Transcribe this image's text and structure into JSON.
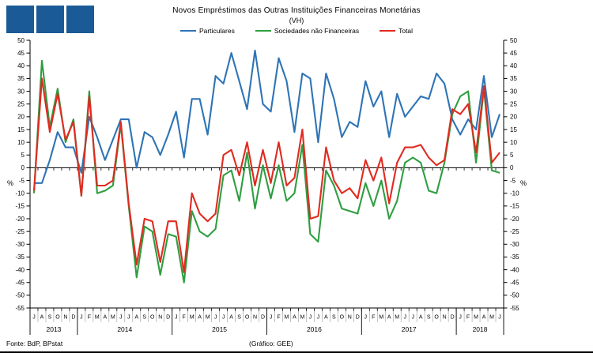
{
  "logo": {
    "square_count": 3,
    "color": "#1A5B97"
  },
  "header": {
    "title": "Novos Empréstimos das Outras Instituições Financeiras Monetárias",
    "subtitle": "(VH)"
  },
  "axis": {
    "unit_label_left": "%",
    "unit_label_right": "%",
    "y_ticks": [
      50,
      45,
      40,
      35,
      30,
      25,
      20,
      15,
      10,
      5,
      0,
      -5,
      -10,
      -15,
      -20,
      -25,
      -30,
      -35,
      -40,
      -45,
      -50,
      -55
    ],
    "month_letters": [
      "J",
      "A",
      "S",
      "O",
      "N",
      "D",
      "J",
      "F",
      "M",
      "A",
      "M",
      "J",
      "J",
      "A",
      "S",
      "O",
      "N",
      "D",
      "J",
      "F",
      "M",
      "A",
      "M",
      "J",
      "J",
      "A",
      "S",
      "O",
      "N",
      "D",
      "J",
      "F",
      "M",
      "A",
      "M",
      "J",
      "J",
      "A",
      "S",
      "O",
      "N",
      "D",
      "J",
      "F",
      "M",
      "A",
      "M",
      "J",
      "J",
      "A",
      "S",
      "O",
      "N",
      "D",
      "J",
      "F",
      "M",
      "A",
      "M",
      "J"
    ],
    "years": [
      {
        "label": "2013",
        "months": 6
      },
      {
        "label": "2014",
        "months": 12
      },
      {
        "label": "2015",
        "months": 12
      },
      {
        "label": "2016",
        "months": 12
      },
      {
        "label": "2017",
        "months": 12
      },
      {
        "label": "2018",
        "months": 6
      }
    ]
  },
  "footer": {
    "source": "Fonte: BdP, BPstat",
    "credit": "(Gráfico: GEE)"
  },
  "chart_data": {
    "type": "line",
    "title": "Novos Empréstimos das Outras Instituições Financeiras Monetárias (VH)",
    "ylabel": "%",
    "ylim": [
      -55,
      50
    ],
    "y_step": 5,
    "grid": false,
    "legend_position": "top",
    "categories": [
      "2013-07",
      "2013-08",
      "2013-09",
      "2013-10",
      "2013-11",
      "2013-12",
      "2014-01",
      "2014-02",
      "2014-03",
      "2014-04",
      "2014-05",
      "2014-06",
      "2014-07",
      "2014-08",
      "2014-09",
      "2014-10",
      "2014-11",
      "2014-12",
      "2015-01",
      "2015-02",
      "2015-03",
      "2015-04",
      "2015-05",
      "2015-06",
      "2015-07",
      "2015-08",
      "2015-09",
      "2015-10",
      "2015-11",
      "2015-12",
      "2016-01",
      "2016-02",
      "2016-03",
      "2016-04",
      "2016-05",
      "2016-06",
      "2016-07",
      "2016-08",
      "2016-09",
      "2016-10",
      "2016-11",
      "2016-12",
      "2017-01",
      "2017-02",
      "2017-03",
      "2017-04",
      "2017-05",
      "2017-06",
      "2017-07",
      "2017-08",
      "2017-09",
      "2017-10",
      "2017-11",
      "2017-12",
      "2018-01",
      "2018-02",
      "2018-03",
      "2018-04",
      "2018-05",
      "2018-06"
    ],
    "series": [
      {
        "name": "Particulares",
        "color": "#2E74B5",
        "values": [
          -6,
          -6,
          3,
          14,
          8,
          8,
          -2,
          20,
          12,
          3,
          11,
          19,
          19,
          0,
          14,
          12,
          5,
          13,
          22,
          4,
          27,
          27,
          13,
          36,
          33,
          45,
          34,
          23,
          46,
          25,
          22,
          43,
          34,
          14,
          37,
          35,
          10,
          37,
          27,
          12,
          18,
          16,
          34,
          24,
          30,
          12,
          29,
          20,
          24,
          28,
          27,
          37,
          33,
          19,
          13,
          19,
          15,
          36,
          12,
          21
        ]
      },
      {
        "name": "Sociedades não Financeiras",
        "color": "#2F9E41",
        "values": [
          -10,
          42,
          16,
          31,
          10,
          19,
          -11,
          30,
          -10,
          -9,
          -7,
          17,
          -15,
          -43,
          -23,
          -25,
          -42,
          -26,
          -27,
          -45,
          -17,
          -25,
          -27,
          -24,
          -3,
          -1,
          -13,
          6,
          -16,
          1,
          -12,
          1,
          -13,
          -10,
          9,
          -26,
          -29,
          -1,
          -7,
          -16,
          -17,
          -18,
          -6,
          -15,
          -5,
          -20,
          -13,
          2,
          4,
          2,
          -9,
          -10,
          2,
          21,
          28,
          30,
          2,
          31,
          -1,
          -2
        ]
      },
      {
        "name": "Total",
        "color": "#E02B20",
        "values": [
          -9,
          35,
          14,
          29,
          11,
          18,
          -11,
          28,
          -7,
          -7,
          -5,
          18,
          -14,
          -38,
          -20,
          -21,
          -37,
          -21,
          -21,
          -41,
          -10,
          -18,
          -21,
          -18,
          5,
          7,
          -3,
          10,
          -7,
          7,
          -6,
          10,
          -7,
          -4,
          15,
          -20,
          -19,
          8,
          -5,
          -10,
          -8,
          -12,
          3,
          -5,
          4,
          -14,
          2,
          8,
          8,
          9,
          4,
          1,
          3,
          23,
          21,
          25,
          6,
          32,
          2,
          6
        ]
      }
    ]
  }
}
